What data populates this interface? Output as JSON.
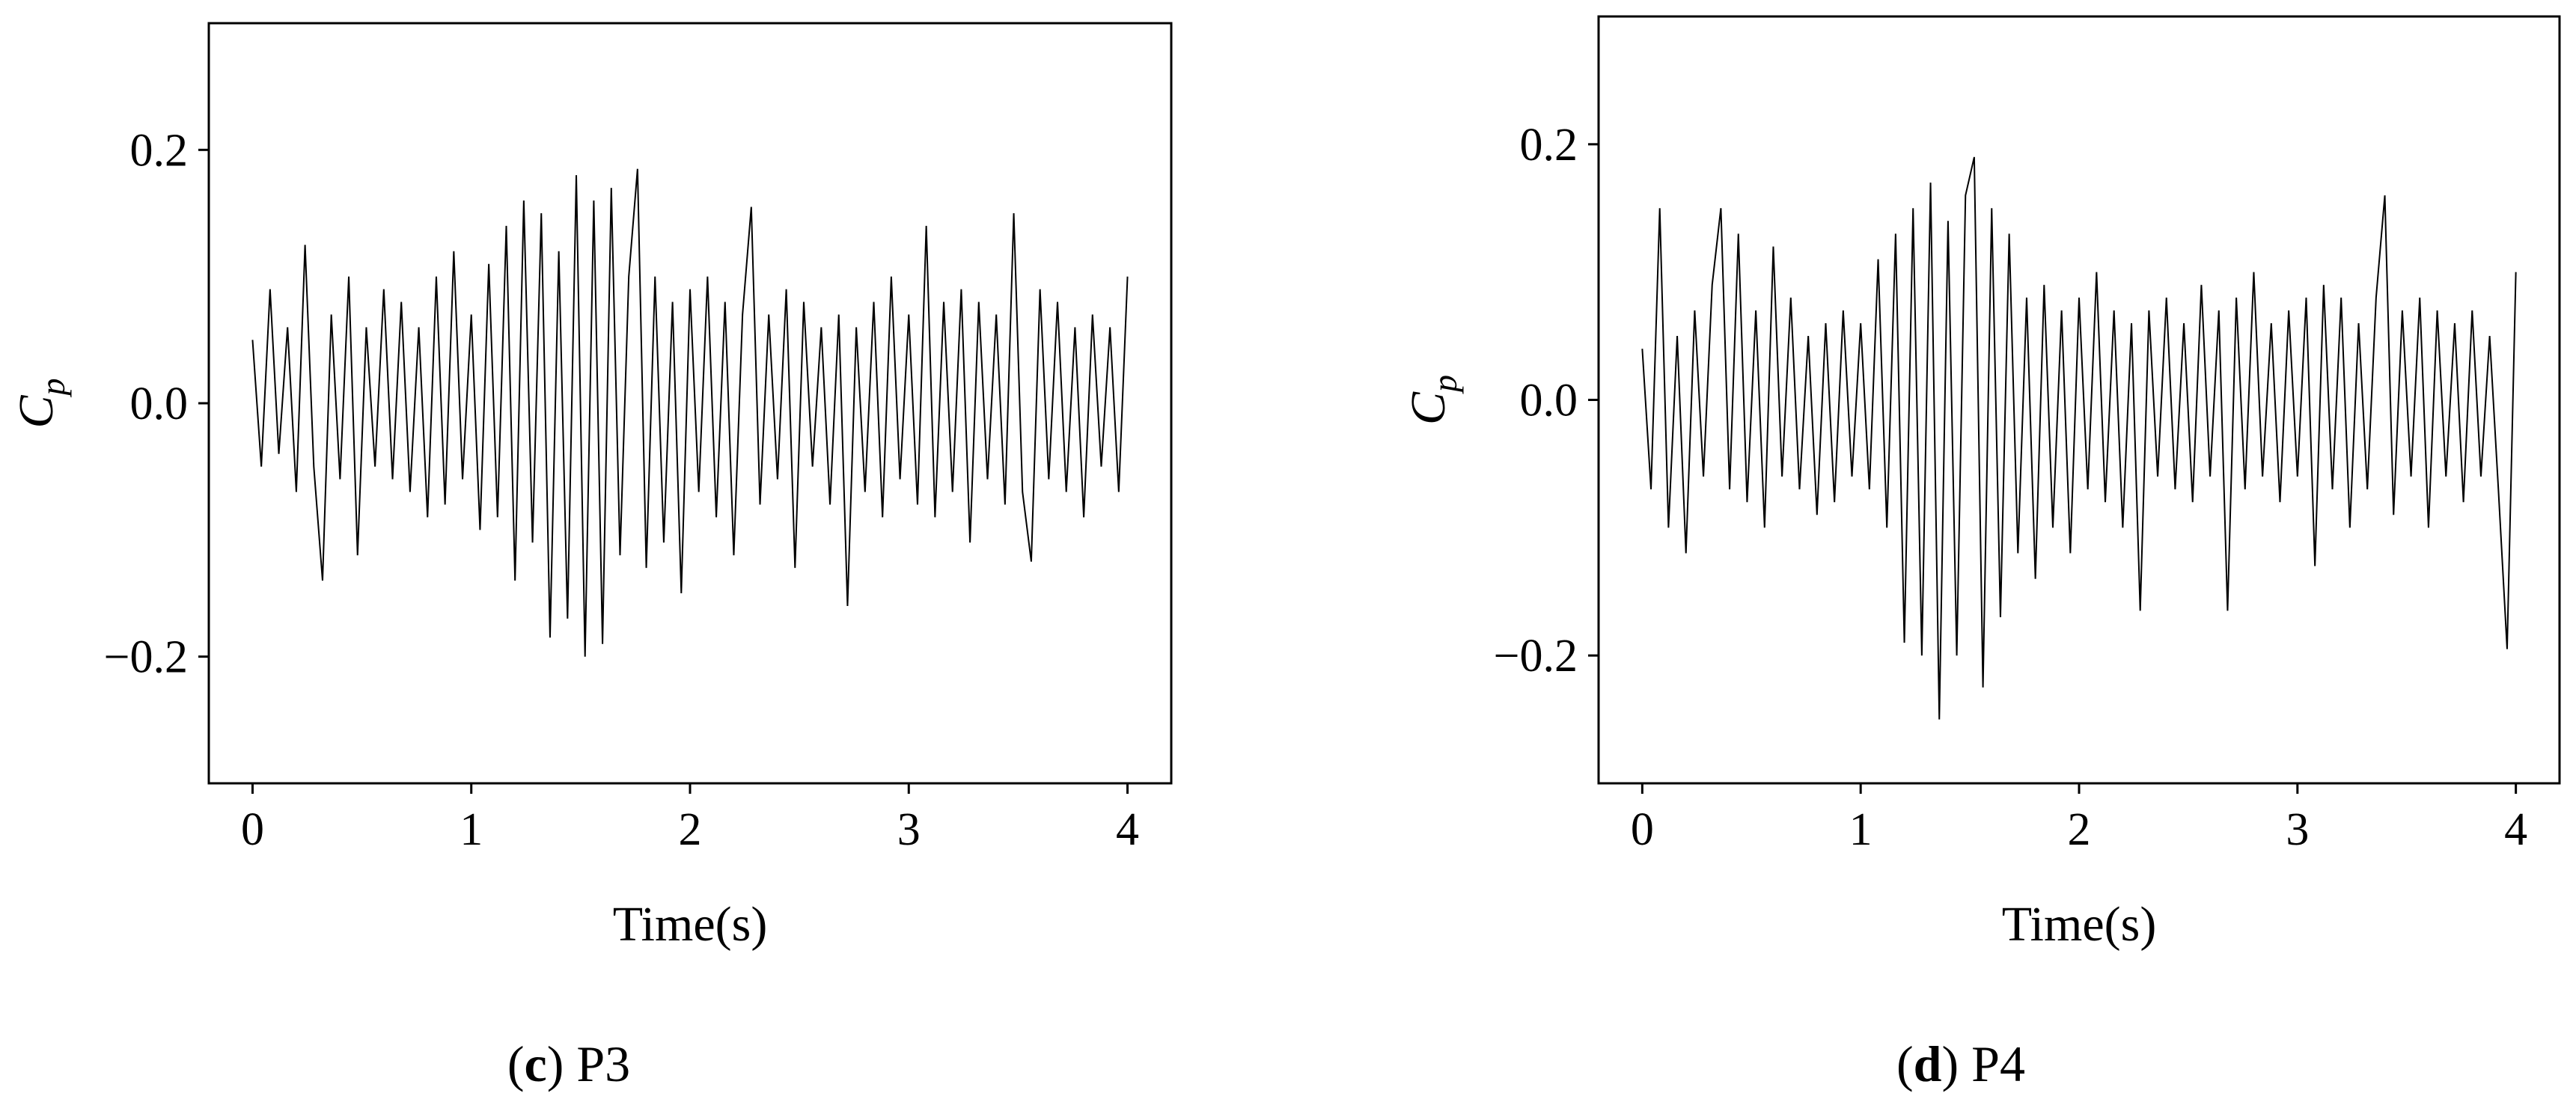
{
  "chart_data": [
    {
      "type": "line",
      "x_label": "Time(s)",
      "y_label": {
        "text": "C",
        "subscript": "p"
      },
      "caption": [
        "(",
        "c",
        ") P3"
      ],
      "color": "#000000",
      "xlim": [
        -0.2,
        4.2
      ],
      "ylim": [
        -0.3,
        0.3
      ],
      "xticks": [
        0,
        1,
        2,
        3,
        4
      ],
      "yticks": [
        {
          "value": -0.2,
          "label": "−0.2"
        },
        {
          "value": 0,
          "label": "0.0"
        },
        0.2
      ],
      "x": [
        0,
        0.04,
        0.08,
        0.12,
        0.16,
        0.2,
        0.24,
        0.28,
        0.32,
        0.36,
        0.4,
        0.44,
        0.48,
        0.52,
        0.56,
        0.6,
        0.64,
        0.68,
        0.72,
        0.76,
        0.8,
        0.84,
        0.88,
        0.92,
        0.96,
        1,
        1.04,
        1.08,
        1.12,
        1.16,
        1.2,
        1.24,
        1.28,
        1.32,
        1.36,
        1.4,
        1.44,
        1.48,
        1.52,
        1.56,
        1.6,
        1.64,
        1.68,
        1.72,
        1.76,
        1.8,
        1.84,
        1.88,
        1.92,
        1.96,
        2,
        2.04,
        2.08,
        2.12,
        2.16,
        2.2,
        2.24,
        2.28,
        2.32,
        2.36,
        2.4,
        2.44,
        2.48,
        2.52,
        2.56,
        2.6,
        2.64,
        2.68,
        2.72,
        2.76,
        2.8,
        2.84,
        2.88,
        2.92,
        2.96,
        3,
        3.04,
        3.08,
        3.12,
        3.16,
        3.2,
        3.24,
        3.28,
        3.32,
        3.36,
        3.4,
        3.44,
        3.48,
        3.52,
        3.56,
        3.6,
        3.64,
        3.68,
        3.72,
        3.76,
        3.8,
        3.84,
        3.88,
        3.92,
        3.96,
        4
      ],
      "values": [
        0.05,
        -0.05,
        0.09,
        -0.04,
        0.06,
        -0.07,
        0.125,
        -0.05,
        -0.14,
        0.07,
        -0.06,
        0.1,
        -0.12,
        0.06,
        -0.05,
        0.09,
        -0.06,
        0.08,
        -0.07,
        0.06,
        -0.09,
        0.1,
        -0.08,
        0.12,
        -0.06,
        0.07,
        -0.1,
        0.11,
        -0.09,
        0.14,
        -0.14,
        0.16,
        -0.11,
        0.15,
        -0.185,
        0.12,
        -0.17,
        0.18,
        -0.2,
        0.16,
        -0.19,
        0.17,
        -0.12,
        0.1,
        0.185,
        -0.13,
        0.1,
        -0.11,
        0.08,
        -0.15,
        0.09,
        -0.07,
        0.1,
        -0.09,
        0.08,
        -0.12,
        0.07,
        0.155,
        -0.08,
        0.07,
        -0.06,
        0.09,
        -0.13,
        0.08,
        -0.05,
        0.06,
        -0.08,
        0.07,
        -0.16,
        0.06,
        -0.07,
        0.08,
        -0.09,
        0.1,
        -0.06,
        0.07,
        -0.08,
        0.14,
        -0.09,
        0.08,
        -0.07,
        0.09,
        -0.11,
        0.08,
        -0.06,
        0.07,
        -0.08,
        0.15,
        -0.07,
        -0.125,
        0.09,
        -0.06,
        0.08,
        -0.07,
        0.06,
        -0.09,
        0.07,
        -0.05,
        0.06,
        -0.07,
        0.1
      ]
    },
    {
      "type": "line",
      "x_label": "Time(s)",
      "y_label": {
        "text": "C",
        "subscript": "p"
      },
      "caption": [
        "(",
        "d",
        ") P4"
      ],
      "color": "#000000",
      "xlim": [
        -0.2,
        4.2
      ],
      "ylim": [
        -0.3,
        0.3
      ],
      "xticks": [
        0,
        1,
        2,
        3,
        4
      ],
      "yticks": [
        {
          "value": -0.2,
          "label": "−0.2"
        },
        {
          "value": 0,
          "label": "0.0"
        },
        0.2
      ],
      "x": [
        0,
        0.04,
        0.08,
        0.12,
        0.16,
        0.2,
        0.24,
        0.28,
        0.32,
        0.36,
        0.4,
        0.44,
        0.48,
        0.52,
        0.56,
        0.6,
        0.64,
        0.68,
        0.72,
        0.76,
        0.8,
        0.84,
        0.88,
        0.92,
        0.96,
        1,
        1.04,
        1.08,
        1.12,
        1.16,
        1.2,
        1.24,
        1.28,
        1.32,
        1.36,
        1.4,
        1.44,
        1.48,
        1.52,
        1.56,
        1.6,
        1.64,
        1.68,
        1.72,
        1.76,
        1.8,
        1.84,
        1.88,
        1.92,
        1.96,
        2,
        2.04,
        2.08,
        2.12,
        2.16,
        2.2,
        2.24,
        2.28,
        2.32,
        2.36,
        2.4,
        2.44,
        2.48,
        2.52,
        2.56,
        2.6,
        2.64,
        2.68,
        2.72,
        2.76,
        2.8,
        2.84,
        2.88,
        2.92,
        2.96,
        3,
        3.04,
        3.08,
        3.12,
        3.16,
        3.2,
        3.24,
        3.28,
        3.32,
        3.36,
        3.4,
        3.44,
        3.48,
        3.52,
        3.56,
        3.6,
        3.64,
        3.68,
        3.72,
        3.76,
        3.8,
        3.84,
        3.88,
        3.92,
        3.96,
        4
      ],
      "values": [
        0.04,
        -0.07,
        0.15,
        -0.1,
        0.05,
        -0.12,
        0.07,
        -0.06,
        0.09,
        0.15,
        -0.07,
        0.13,
        -0.08,
        0.07,
        -0.1,
        0.12,
        -0.06,
        0.08,
        -0.07,
        0.05,
        -0.09,
        0.06,
        -0.08,
        0.07,
        -0.06,
        0.06,
        -0.07,
        0.11,
        -0.1,
        0.13,
        -0.19,
        0.15,
        -0.2,
        0.17,
        -0.25,
        0.14,
        -0.2,
        0.16,
        0.19,
        -0.225,
        0.15,
        -0.17,
        0.13,
        -0.12,
        0.08,
        -0.14,
        0.09,
        -0.1,
        0.07,
        -0.12,
        0.08,
        -0.07,
        0.1,
        -0.08,
        0.07,
        -0.1,
        0.06,
        -0.165,
        0.07,
        -0.06,
        0.08,
        -0.07,
        0.06,
        -0.08,
        0.09,
        -0.06,
        0.07,
        -0.165,
        0.08,
        -0.07,
        0.1,
        -0.06,
        0.06,
        -0.08,
        0.07,
        -0.06,
        0.08,
        -0.13,
        0.09,
        -0.07,
        0.08,
        -0.1,
        0.06,
        -0.07,
        0.08,
        0.16,
        -0.09,
        0.07,
        -0.06,
        0.08,
        -0.1,
        0.07,
        -0.06,
        0.06,
        -0.08,
        0.07,
        -0.06,
        0.05,
        -0.07,
        -0.195,
        0.1
      ]
    }
  ]
}
